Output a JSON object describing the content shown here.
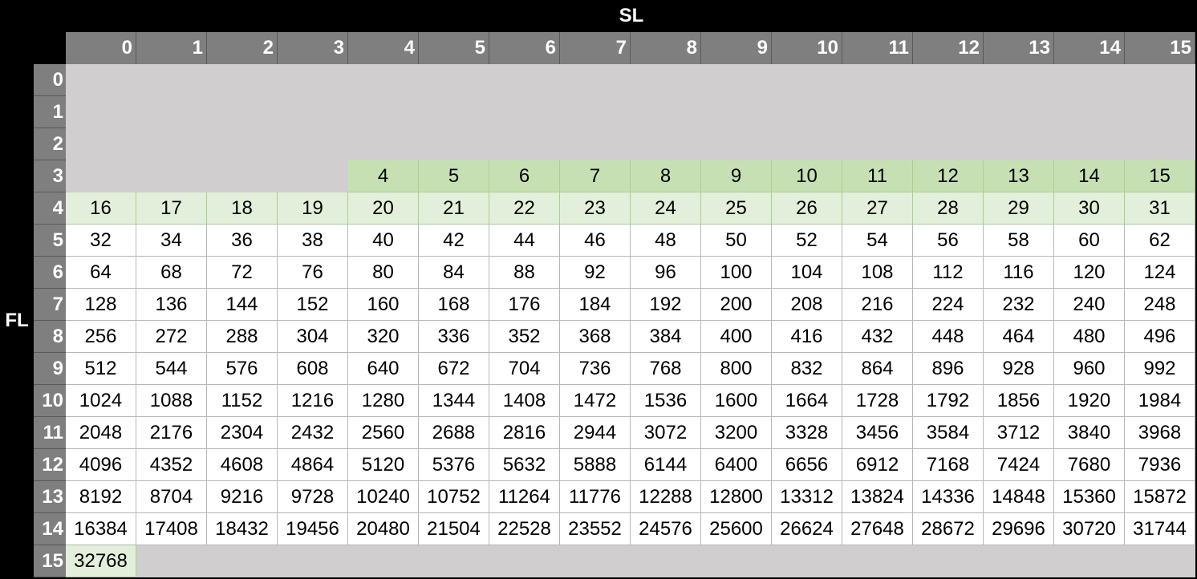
{
  "column_axis_label": "SL",
  "row_axis_label": "FL",
  "column_headers": [
    "0",
    "1",
    "2",
    "3",
    "4",
    "5",
    "6",
    "7",
    "8",
    "9",
    "10",
    "11",
    "12",
    "13",
    "14",
    "15"
  ],
  "row_headers": [
    "0",
    "1",
    "2",
    "3",
    "4",
    "5",
    "6",
    "7",
    "8",
    "9",
    "10",
    "11",
    "12",
    "13",
    "14",
    "15"
  ],
  "row3_values": [
    "4",
    "5",
    "6",
    "7",
    "8",
    "9",
    "10",
    "11",
    "12",
    "13",
    "14",
    "15"
  ],
  "rows": [
    [
      "16",
      "17",
      "18",
      "19",
      "20",
      "21",
      "22",
      "23",
      "24",
      "25",
      "26",
      "27",
      "28",
      "29",
      "30",
      "31"
    ],
    [
      "32",
      "34",
      "36",
      "38",
      "40",
      "42",
      "44",
      "46",
      "48",
      "50",
      "52",
      "54",
      "56",
      "58",
      "60",
      "62"
    ],
    [
      "64",
      "68",
      "72",
      "76",
      "80",
      "84",
      "88",
      "92",
      "96",
      "100",
      "104",
      "108",
      "112",
      "116",
      "120",
      "124"
    ],
    [
      "128",
      "136",
      "144",
      "152",
      "160",
      "168",
      "176",
      "184",
      "192",
      "200",
      "208",
      "216",
      "224",
      "232",
      "240",
      "248"
    ],
    [
      "256",
      "272",
      "288",
      "304",
      "320",
      "336",
      "352",
      "368",
      "384",
      "400",
      "416",
      "432",
      "448",
      "464",
      "480",
      "496"
    ],
    [
      "512",
      "544",
      "576",
      "608",
      "640",
      "672",
      "704",
      "736",
      "768",
      "800",
      "832",
      "864",
      "896",
      "928",
      "960",
      "992"
    ],
    [
      "1024",
      "1088",
      "1152",
      "1216",
      "1280",
      "1344",
      "1408",
      "1472",
      "1536",
      "1600",
      "1664",
      "1728",
      "1792",
      "1856",
      "1920",
      "1984"
    ],
    [
      "2048",
      "2176",
      "2304",
      "2432",
      "2560",
      "2688",
      "2816",
      "2944",
      "3072",
      "3200",
      "3328",
      "3456",
      "3584",
      "3712",
      "3840",
      "3968"
    ],
    [
      "4096",
      "4352",
      "4608",
      "4864",
      "5120",
      "5376",
      "5632",
      "5888",
      "6144",
      "6400",
      "6656",
      "6912",
      "7168",
      "7424",
      "7680",
      "7936"
    ],
    [
      "8192",
      "8704",
      "9216",
      "9728",
      "10240",
      "10752",
      "11264",
      "11776",
      "12288",
      "12800",
      "13312",
      "13824",
      "14336",
      "14848",
      "15360",
      "15872"
    ],
    [
      "16384",
      "17408",
      "18432",
      "19456",
      "20480",
      "21504",
      "22528",
      "23552",
      "24576",
      "25600",
      "26624",
      "27648",
      "28672",
      "29696",
      "30720",
      "31744"
    ]
  ],
  "last_row_value": "32768",
  "colors": {
    "header_bg": "#7f7f7f",
    "gray_fill": "#d0cece",
    "green_mid": "#c6e0b4",
    "green_light": "#e2efda"
  }
}
